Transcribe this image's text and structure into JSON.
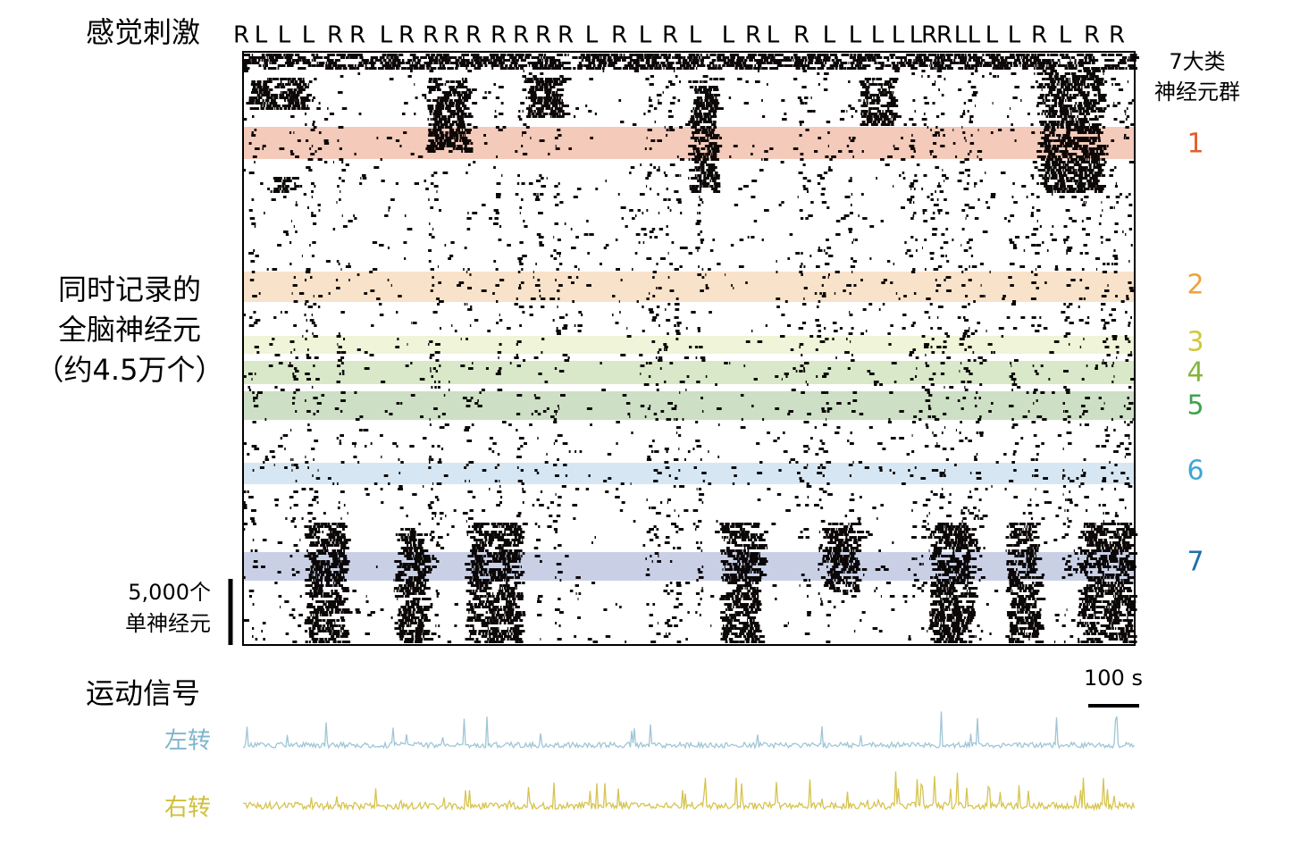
{
  "header": {
    "title": "感觉刺激",
    "stimuli": [
      "R",
      "L",
      "L",
      "L",
      "R",
      "R",
      "L",
      "R",
      "R",
      "R",
      "R",
      "R",
      "R",
      "R",
      "R",
      "L",
      "R",
      "L",
      "R",
      "L",
      "L",
      "R",
      "L",
      "R",
      "L",
      "L",
      "L",
      "L",
      "L",
      "R",
      "R",
      "L",
      "L",
      "L",
      "L",
      "R",
      "L",
      "R",
      "R"
    ]
  },
  "clusters": {
    "title_line1": "7大类",
    "title_line2": "神经元群",
    "labels": [
      "1",
      "2",
      "3",
      "4",
      "5",
      "6",
      "7"
    ]
  },
  "raster": {
    "label_lines": [
      "同时记录的",
      "全脑神经元",
      "（约4.5万个）"
    ],
    "scale_lines": [
      "5,000个",
      "单神经元"
    ]
  },
  "motor": {
    "title": "运动信号",
    "scale": "100 s",
    "traces": [
      "左转",
      "右转"
    ]
  }
}
